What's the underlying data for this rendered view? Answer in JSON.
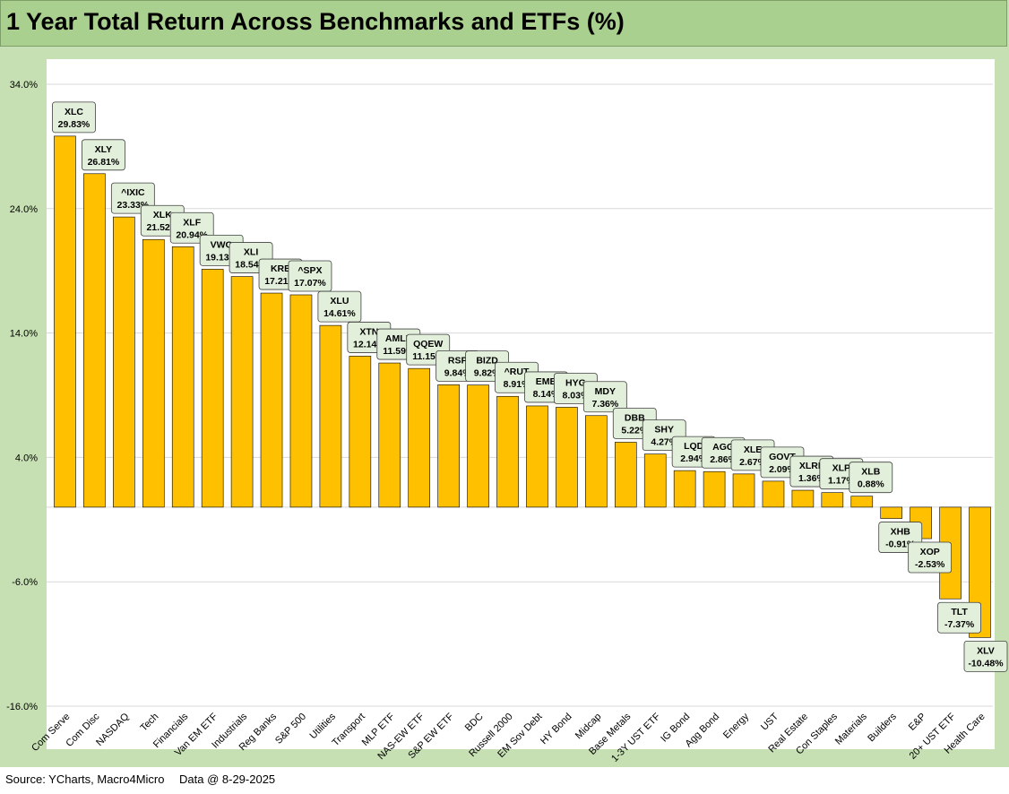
{
  "title": "1 Year Total Return Across Benchmarks and ETFs (%)",
  "footer": {
    "source": "Source: YCharts, Macro4Micro",
    "as_of": "Data @ 8-29-2025"
  },
  "chart_data": {
    "type": "bar",
    "ylim": [
      -16,
      34
    ],
    "yticks": [
      "34.0%",
      "24.0%",
      "14.0%",
      "4.0%",
      "-6.0%",
      "-16.0%"
    ],
    "grid": true,
    "bar_color": "#ffc000",
    "label_box_color": "#e2efda",
    "categories": [
      "Com Serve",
      "Com Disc",
      "NASDAQ",
      "Tech",
      "Financials",
      "Van EM ETF",
      "Industrials",
      "Reg Banks",
      "S&P 500",
      "Utilities",
      "Transport",
      "MLP ETF",
      "NAS-EW ETF",
      "S&P EW ETF",
      "BDC",
      "Russell 2000",
      "EM Sov Debt",
      "HY Bond",
      "Midcap",
      "Base Metals",
      "1-3Y UST ETF",
      "IG Bond",
      "Agg Bond",
      "Energy",
      "UST",
      "Real Estate",
      "Con Staples",
      "Materials",
      "Builders",
      "E&P",
      "20+ UST ETF",
      "Health Care"
    ],
    "tickers": [
      "XLC",
      "XLY",
      "^IXIC",
      "XLK",
      "XLF",
      "VWO",
      "XLI",
      "KRE",
      "^SPX",
      "XLU",
      "XTN",
      "AMLP",
      "QQEW",
      "RSP",
      "BIZD",
      "^RUT",
      "EMB",
      "HYG",
      "MDY",
      "DBB",
      "SHY",
      "LQD",
      "AGG",
      "XLE",
      "GOVT",
      "XLRE",
      "XLP",
      "XLB",
      "XHB",
      "XOP",
      "TLT",
      "XLV"
    ],
    "values": [
      29.83,
      26.81,
      23.33,
      21.52,
      20.94,
      19.13,
      18.54,
      17.21,
      17.07,
      14.61,
      12.14,
      11.59,
      11.15,
      9.84,
      9.82,
      8.91,
      8.14,
      8.03,
      7.36,
      5.22,
      4.27,
      2.94,
      2.86,
      2.67,
      2.09,
      1.36,
      1.17,
      0.88,
      -0.91,
      -2.53,
      -7.37,
      -10.48
    ],
    "value_labels": [
      "29.83%",
      "26.81%",
      "23.33%",
      "21.52%",
      "20.94%",
      "19.13%",
      "18.54%",
      "17.21%",
      "17.07%",
      "14.61%",
      "12.14%",
      "11.59%",
      "11.15%",
      "9.84%",
      "9.82%",
      "8.91%",
      "8.14%",
      "8.03%",
      "7.36%",
      "5.22%",
      "4.27%",
      "2.94%",
      "2.86%",
      "2.67%",
      "2.09%",
      "1.36%",
      "1.17%",
      "0.88%",
      "-0.91%",
      "-2.53%",
      "-7.37%",
      "-10.48%"
    ]
  }
}
